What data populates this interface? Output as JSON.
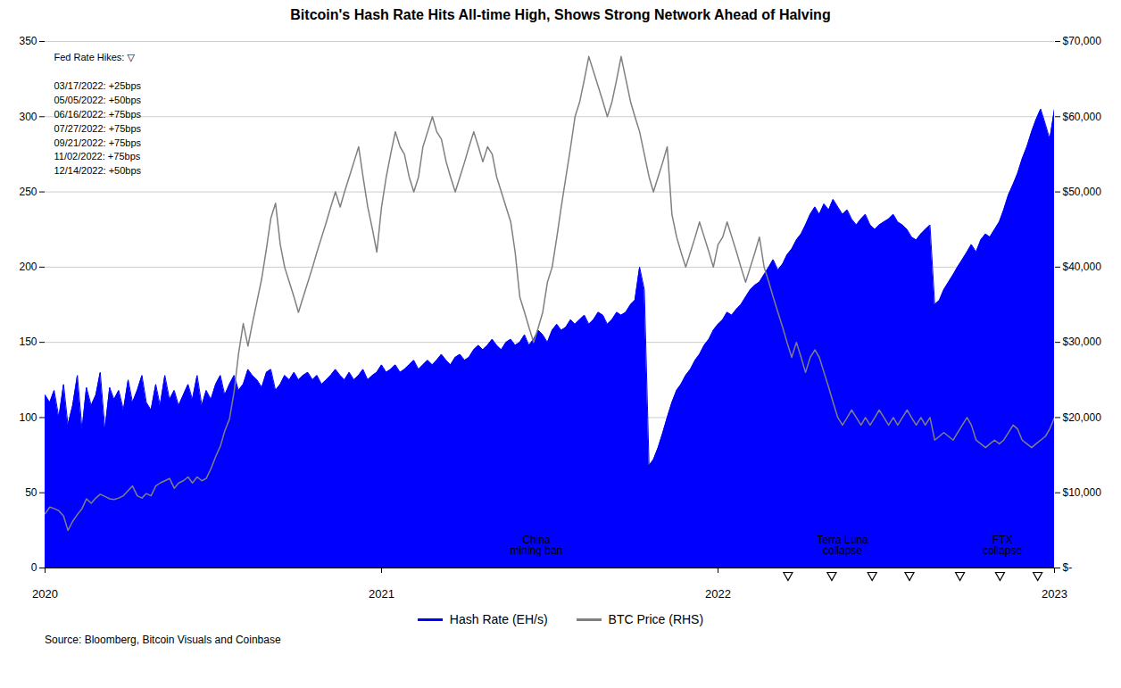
{
  "chart_data": {
    "type": "line",
    "title": "Bitcoin's Hash Rate Hits All-time High, Shows Strong Network Ahead of Halving",
    "source": "Source: Bloomberg, Bitcoin Visuals and Coinbase",
    "legend": "bottom",
    "grid": true,
    "xlim": [
      2020,
      2023
    ],
    "xticks": [
      2020,
      2021,
      2022,
      2023
    ],
    "ylim": [
      0,
      350
    ],
    "yticks": [
      0,
      50,
      100,
      150,
      200,
      250,
      300,
      350
    ],
    "y2lim": [
      0,
      70000
    ],
    "y2ticks": [
      {
        "value": 0,
        "label": "$-"
      },
      {
        "value": 10000,
        "label": "$10,000"
      },
      {
        "value": 20000,
        "label": "$20,000"
      },
      {
        "value": 30000,
        "label": "$30,000"
      },
      {
        "value": 40000,
        "label": "$40,000"
      },
      {
        "value": 50000,
        "label": "$50,000"
      },
      {
        "value": 60000,
        "label": "$60,000"
      },
      {
        "value": 70000,
        "label": "$70,000"
      }
    ],
    "fed_rate_hikes": {
      "title": "Fed Rate Hikes: ▽",
      "entries": [
        "03/17/2022: +25bps",
        "05/05/2022: +50bps",
        "06/16/2022: +75bps",
        "07/27/2022: +75bps",
        "09/21/2022: +75bps",
        "11/02/2022: +75bps",
        "12/14/2022: +50bps"
      ],
      "x": [
        2022.208,
        2022.338,
        2022.458,
        2022.569,
        2022.719,
        2022.838,
        2022.95
      ]
    },
    "annotations": [
      {
        "label": "China\nmining ban",
        "x": 2021.46,
        "y": 72
      },
      {
        "label": "Terra Luna\ncollapse",
        "x": 2022.37,
        "y": 195
      },
      {
        "label": "FTX\ncollapse",
        "x": 2022.845,
        "y": 188
      }
    ],
    "x": [
      2020.0,
      2020.014,
      2020.027,
      2020.041,
      2020.055,
      2020.068,
      2020.082,
      2020.096,
      2020.11,
      2020.123,
      2020.137,
      2020.151,
      2020.164,
      2020.178,
      2020.192,
      2020.205,
      2020.219,
      2020.233,
      2020.247,
      2020.26,
      2020.274,
      2020.288,
      2020.301,
      2020.315,
      2020.329,
      2020.342,
      2020.356,
      2020.37,
      2020.384,
      2020.397,
      2020.411,
      2020.425,
      2020.438,
      2020.452,
      2020.466,
      2020.479,
      2020.493,
      2020.507,
      2020.521,
      2020.534,
      2020.548,
      2020.562,
      2020.575,
      2020.589,
      2020.603,
      2020.616,
      2020.63,
      2020.644,
      2020.658,
      2020.671,
      2020.685,
      2020.699,
      2020.712,
      2020.726,
      2020.74,
      2020.753,
      2020.767,
      2020.781,
      2020.795,
      2020.808,
      2020.822,
      2020.836,
      2020.849,
      2020.863,
      2020.877,
      2020.89,
      2020.904,
      2020.918,
      2020.932,
      2020.945,
      2020.959,
      2020.973,
      2020.986,
      2021.0,
      2021.014,
      2021.027,
      2021.041,
      2021.055,
      2021.068,
      2021.082,
      2021.096,
      2021.11,
      2021.123,
      2021.137,
      2021.151,
      2021.164,
      2021.178,
      2021.192,
      2021.205,
      2021.219,
      2021.233,
      2021.247,
      2021.26,
      2021.274,
      2021.288,
      2021.301,
      2021.315,
      2021.329,
      2021.342,
      2021.356,
      2021.37,
      2021.384,
      2021.397,
      2021.411,
      2021.425,
      2021.438,
      2021.452,
      2021.466,
      2021.479,
      2021.493,
      2021.507,
      2021.521,
      2021.534,
      2021.548,
      2021.562,
      2021.575,
      2021.589,
      2021.603,
      2021.616,
      2021.63,
      2021.644,
      2021.658,
      2021.671,
      2021.685,
      2021.699,
      2021.712,
      2021.726,
      2021.74,
      2021.753,
      2021.767,
      2021.781,
      2021.795,
      2021.808,
      2021.822,
      2021.836,
      2021.849,
      2021.863,
      2021.877,
      2021.89,
      2021.904,
      2021.918,
      2021.932,
      2021.945,
      2021.959,
      2021.973,
      2021.986,
      2022.0,
      2022.014,
      2022.027,
      2022.041,
      2022.055,
      2022.068,
      2022.082,
      2022.096,
      2022.11,
      2022.123,
      2022.137,
      2022.151,
      2022.164,
      2022.178,
      2022.192,
      2022.205,
      2022.219,
      2022.233,
      2022.247,
      2022.26,
      2022.274,
      2022.288,
      2022.301,
      2022.315,
      2022.329,
      2022.342,
      2022.356,
      2022.37,
      2022.384,
      2022.397,
      2022.411,
      2022.425,
      2022.438,
      2022.452,
      2022.466,
      2022.479,
      2022.493,
      2022.507,
      2022.521,
      2022.534,
      2022.548,
      2022.562,
      2022.575,
      2022.589,
      2022.603,
      2022.616,
      2022.63,
      2022.644,
      2022.658,
      2022.671,
      2022.685,
      2022.699,
      2022.712,
      2022.726,
      2022.74,
      2022.753,
      2022.767,
      2022.781,
      2022.795,
      2022.808,
      2022.822,
      2022.836,
      2022.849,
      2022.863,
      2022.877,
      2022.89,
      2022.904,
      2022.918,
      2022.932,
      2022.945,
      2022.959,
      2022.973,
      2022.986,
      2023.0
    ],
    "series": [
      {
        "name": "Hash Rate (EH/s)",
        "color": "#0000FF",
        "type": "area",
        "values": [
          115,
          110,
          118,
          100,
          122,
          95,
          108,
          128,
          92,
          120,
          108,
          115,
          130,
          92,
          120,
          112,
          118,
          105,
          125,
          110,
          118,
          128,
          110,
          105,
          122,
          108,
          128,
          112,
          118,
          108,
          115,
          122,
          112,
          128,
          108,
          118,
          112,
          122,
          128,
          115,
          122,
          128,
          118,
          122,
          132,
          128,
          125,
          120,
          130,
          132,
          118,
          122,
          128,
          125,
          130,
          125,
          128,
          130,
          125,
          128,
          122,
          125,
          128,
          132,
          128,
          125,
          130,
          125,
          128,
          132,
          125,
          128,
          130,
          135,
          130,
          132,
          135,
          130,
          132,
          135,
          138,
          132,
          135,
          138,
          135,
          138,
          142,
          138,
          135,
          140,
          142,
          138,
          140,
          145,
          148,
          145,
          148,
          152,
          148,
          145,
          150,
          152,
          148,
          150,
          155,
          148,
          152,
          158,
          155,
          150,
          158,
          162,
          158,
          160,
          165,
          162,
          165,
          168,
          162,
          165,
          170,
          168,
          162,
          165,
          170,
          168,
          170,
          175,
          178,
          200,
          185,
          68,
          72,
          80,
          90,
          100,
          110,
          118,
          122,
          128,
          132,
          138,
          142,
          148,
          152,
          158,
          162,
          165,
          170,
          168,
          172,
          175,
          180,
          185,
          188,
          190,
          195,
          200,
          205,
          198,
          202,
          208,
          212,
          218,
          222,
          228,
          235,
          240,
          235,
          242,
          238,
          245,
          240,
          235,
          238,
          232,
          228,
          232,
          235,
          228,
          225,
          228,
          230,
          232,
          235,
          230,
          228,
          225,
          220,
          218,
          222,
          225,
          228,
          175,
          178,
          185,
          190,
          195,
          200,
          205,
          210,
          215,
          210,
          218,
          222,
          220,
          225,
          230,
          238,
          248,
          255,
          262,
          272,
          280,
          290,
          298,
          305,
          295,
          285,
          305
        ]
      },
      {
        "name": "BTC Price (RHS)",
        "color": "#808080",
        "type": "line",
        "axis": "y2",
        "values": [
          7200,
          8100,
          7900,
          7600,
          6900,
          5000,
          6200,
          7100,
          7900,
          9200,
          8600,
          9300,
          9800,
          9500,
          9200,
          9100,
          9300,
          9600,
          10300,
          10900,
          9600,
          9300,
          9900,
          9600,
          10900,
          11300,
          11600,
          11900,
          10600,
          11300,
          11600,
          12100,
          11300,
          12100,
          11600,
          11900,
          13200,
          14800,
          16200,
          18200,
          19800,
          23500,
          28500,
          32500,
          29500,
          32500,
          35500,
          38500,
          42500,
          46500,
          48500,
          43000,
          40000,
          38000,
          36000,
          34000,
          36000,
          38000,
          40000,
          42000,
          44000,
          46000,
          48000,
          50000,
          48000,
          50000,
          52000,
          54000,
          56000,
          52000,
          48000,
          45000,
          42000,
          48000,
          52000,
          55000,
          58000,
          56000,
          55000,
          52000,
          50000,
          52000,
          56000,
          58000,
          60000,
          58000,
          57000,
          54000,
          52000,
          50000,
          52000,
          54000,
          56000,
          58000,
          56000,
          54000,
          56000,
          55000,
          52000,
          50000,
          48000,
          46000,
          42000,
          36000,
          34000,
          32000,
          30000,
          32000,
          34000,
          38000,
          40000,
          44000,
          48000,
          52000,
          56000,
          60000,
          62000,
          65000,
          68000,
          66000,
          64000,
          62000,
          60000,
          62000,
          65000,
          68000,
          65000,
          62000,
          60000,
          58000,
          55000,
          52000,
          50000,
          52000,
          54000,
          56000,
          47000,
          44000,
          42000,
          40000,
          42000,
          44000,
          46000,
          44000,
          42000,
          40000,
          43000,
          44000,
          46000,
          44000,
          42000,
          40000,
          38000,
          40000,
          42000,
          44000,
          40000,
          38000,
          36000,
          34000,
          32000,
          30000,
          28000,
          30000,
          28000,
          26000,
          28000,
          29000,
          28000,
          26000,
          24000,
          22000,
          20000,
          19000,
          20000,
          21000,
          20000,
          19000,
          20000,
          19000,
          20000,
          21000,
          20000,
          19000,
          20000,
          19000,
          20000,
          21000,
          20000,
          19000,
          20000,
          19000,
          20000,
          17000,
          17500,
          18000,
          17500,
          17000,
          18000,
          19000,
          20000,
          19000,
          17000,
          16500,
          16000,
          16500,
          17000,
          16500,
          17000,
          18000,
          19000,
          18500,
          17000,
          16500,
          16000,
          16500,
          17000,
          17500,
          18500,
          20000
        ]
      }
    ]
  }
}
